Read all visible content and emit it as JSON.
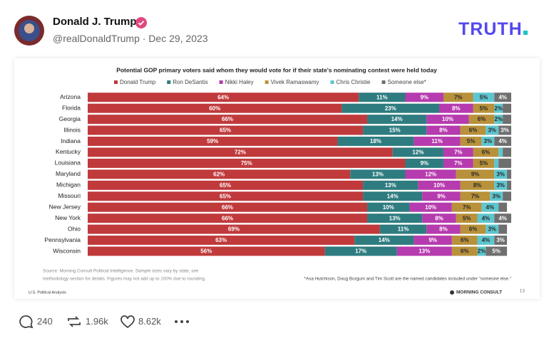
{
  "post": {
    "author": "Donald J. Trump",
    "handle_date": "@realDonaldTrump · Dec 29, 2023",
    "logo": "TRUTH",
    "replies": "240",
    "reposts": "1.96k",
    "likes": "8.62k"
  },
  "chart_data": {
    "type": "stacked-bar",
    "orientation": "horizontal",
    "title": "Potential GOP primary voters said whom they would vote for if their state's nominating contest were held today",
    "categories": [
      "Arizona",
      "Florida",
      "Georgia",
      "Illinois",
      "Indiana",
      "Kentucky",
      "Louisiana",
      "Maryland",
      "Michigan",
      "Missouri",
      "New Jersey",
      "New York",
      "Ohio",
      "Pennsylvania",
      "Wisconsin"
    ],
    "series": [
      {
        "name": "Donald Trump",
        "color": "#c03a3c",
        "values": [
          64,
          60,
          66,
          65,
          59,
          72,
          75,
          62,
          65,
          65,
          66,
          66,
          69,
          63,
          56
        ],
        "value_labels": [
          "64%",
          "60%",
          "66%",
          "65%",
          "59%",
          "72%",
          "75%",
          "62%",
          "65%",
          "65%",
          "66%",
          "66%",
          "69%",
          "63%",
          "56%"
        ]
      },
      {
        "name": "Ron DeSantis",
        "color": "#2e7c80",
        "values": [
          11,
          23,
          14,
          15,
          18,
          12,
          9,
          13,
          13,
          14,
          10,
          13,
          11,
          14,
          17
        ],
        "value_labels": [
          "11%",
          "23%",
          "14%",
          "15%",
          "18%",
          "12%",
          "9%",
          "13%",
          "13%",
          "14%",
          "10%",
          "13%",
          "11%",
          "14%",
          "17%"
        ]
      },
      {
        "name": "Nikki Haley",
        "color": "#b63bae",
        "values": [
          9,
          8,
          10,
          8,
          11,
          7,
          7,
          12,
          10,
          9,
          10,
          8,
          8,
          9,
          13
        ],
        "value_labels": [
          "9%",
          "8%",
          "10%",
          "8%",
          "11%",
          "7%",
          "7%",
          "12%",
          "10%",
          "9%",
          "10%",
          "8%",
          "8%",
          "9%",
          "13%"
        ]
      },
      {
        "name": "Vivek Ramaswamy",
        "color": "#b8913a",
        "values": [
          7,
          5,
          6,
          6,
          5,
          6,
          5,
          9,
          8,
          7,
          7,
          5,
          6,
          6,
          6
        ],
        "value_labels": [
          "7%",
          "5%",
          "6%",
          "6%",
          "5%",
          "6%",
          "5%",
          "9%",
          "8%",
          "7%",
          "7%",
          "5%",
          "6%",
          "6%",
          "6%"
        ]
      },
      {
        "name": "Chris Christie",
        "color": "#5ec6cf",
        "values": [
          5,
          2,
          2,
          3,
          3,
          1,
          1,
          3,
          3,
          3,
          4,
          4,
          3,
          4,
          2
        ],
        "value_labels": [
          "5%",
          "2%",
          "2%",
          "3%",
          "3%",
          null,
          null,
          "3%",
          "3%",
          "3%",
          "4%",
          "4%",
          "3%",
          "4%",
          "2%"
        ]
      },
      {
        "name": "Someone else*",
        "color": "#6f6f6f",
        "values": [
          4,
          2,
          2,
          3,
          4,
          2,
          3,
          1,
          1,
          2,
          2,
          4,
          2,
          3,
          5
        ],
        "value_labels": [
          "4%",
          null,
          null,
          "3%",
          "4%",
          null,
          null,
          null,
          null,
          null,
          null,
          "4%",
          null,
          "3%",
          "5%"
        ]
      }
    ],
    "xlim": [
      0,
      100
    ],
    "source": [
      "Source: Morning Consult Political Intelligence. Sample sizes vary by state, see",
      "methodology section for details. Figures may not add up to 100% due to rounding."
    ],
    "footnote": "*Asa Hutchison, Doug Burgum and Tim Scott are the named candidates included under \"someone else.\"",
    "section": "U.S. Political Analysis",
    "brand": "MORNING CONSULT",
    "page": "13"
  }
}
